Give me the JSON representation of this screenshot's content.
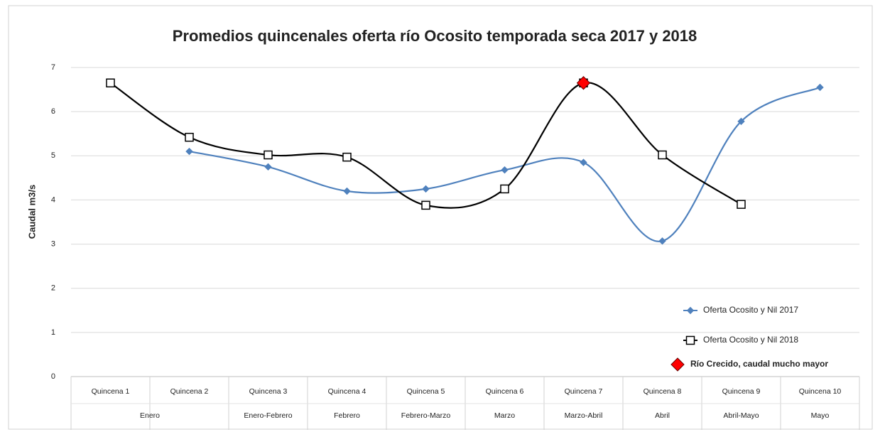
{
  "chart_data": {
    "type": "line",
    "title": "Promedios quincenales oferta río Ocosito temporada seca 2017 y 2018",
    "y_label": "Caudal m3/s",
    "categories": [
      "Quincena 1",
      "Quincena 2",
      "Quincena 3",
      "Quincena 4",
      "Quincena 5",
      "Quincena 6",
      "Quincena 7",
      "Quincena 8",
      "Quincena 9",
      "Quincena 10"
    ],
    "group_labels": [
      "Enero",
      null,
      "Enero-Febrero",
      "Febrero",
      "Febrero-Marzo",
      "Marzo",
      "Marzo-Abril",
      "Abril",
      "Abril-Mayo",
      "Mayo"
    ],
    "series": [
      {
        "name": "Oferta Ocosito y Nil 2017",
        "color": "#4f81bd",
        "marker": "diamond",
        "line": true,
        "values": [
          null,
          5.1,
          4.75,
          4.2,
          4.25,
          4.68,
          4.85,
          3.07,
          5.78,
          6.55
        ]
      },
      {
        "name": "Oferta Ocosito y Nil 2018",
        "color": "#000000",
        "marker": "square",
        "line": true,
        "values": [
          6.65,
          5.42,
          5.02,
          4.97,
          3.88,
          4.25,
          6.65,
          5.02,
          3.9,
          null
        ]
      },
      {
        "name": "Río Crecido, caudal mucho mayor",
        "color": "#ff0000",
        "marker": "big-diamond",
        "line": false,
        "values": [
          null,
          null,
          null,
          null,
          null,
          null,
          6.65,
          null,
          null,
          null
        ]
      }
    ],
    "ylim": [
      0,
      7
    ],
    "yticks": [
      0,
      1,
      2,
      3,
      4,
      5,
      6,
      7
    ],
    "grid": true,
    "legend": "lower right"
  }
}
